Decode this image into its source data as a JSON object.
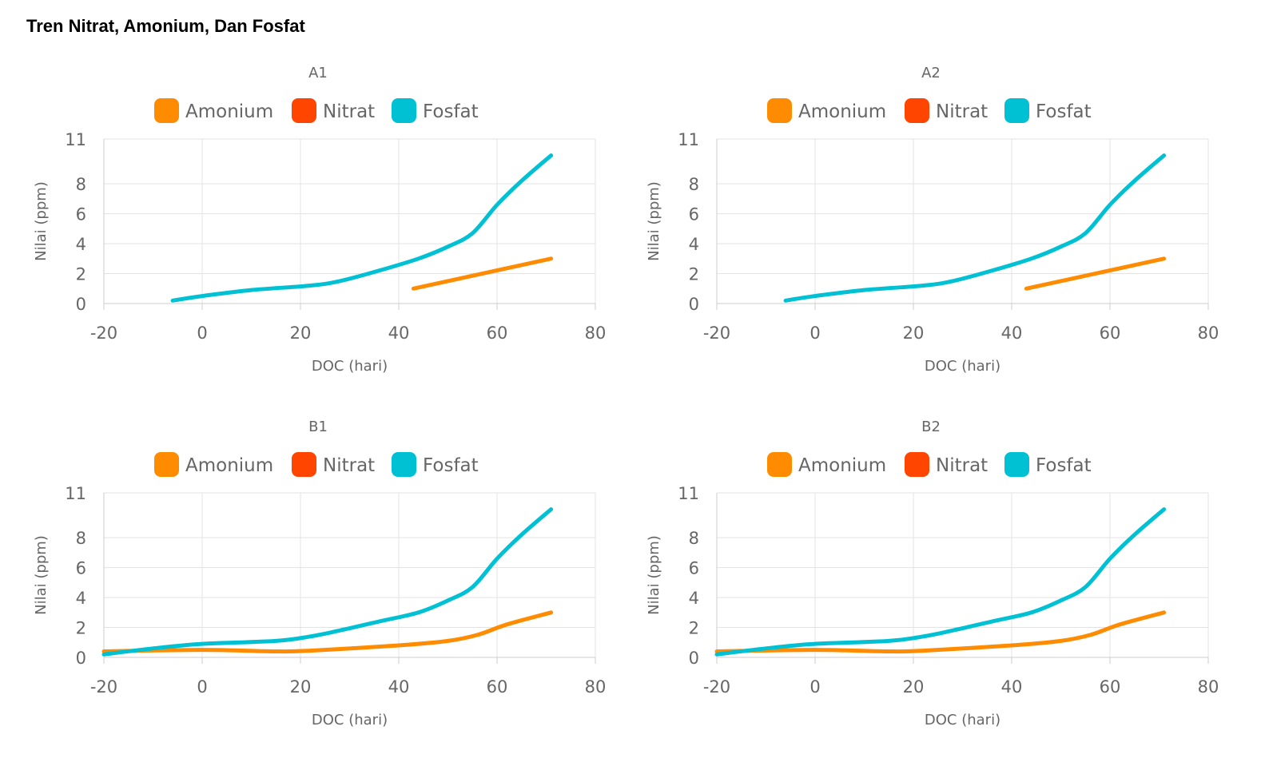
{
  "title": "Tren Nitrat, Amonium, Dan Fosfat",
  "colors": {
    "Amonium": "#FF8C00",
    "Nitrat": "#FF4500",
    "Fosfat": "#00C1D4"
  },
  "chart_data": [
    {
      "type": "line",
      "title": "A1",
      "xlabel": "DOC (hari)",
      "ylabel": "Nilai (ppm)",
      "xlim": [
        -20,
        80
      ],
      "ylim": [
        0,
        11
      ],
      "xticks": [
        "-20",
        "0",
        "20",
        "40",
        "60",
        "80"
      ],
      "yticks": [
        "0",
        "2",
        "4",
        "6",
        "8",
        "11"
      ],
      "legend": [
        "Amonium",
        "Nitrat",
        "Fosfat"
      ],
      "legend_position": "top-center",
      "grid": true,
      "series": [
        {
          "name": "Amonium",
          "points": [
            [
              43,
              1.0
            ],
            [
              71,
              3.0
            ]
          ]
        },
        {
          "name": "Nitrat",
          "points": []
        },
        {
          "name": "Fosfat",
          "points": [
            [
              -6,
              0.2
            ],
            [
              0,
              0.5
            ],
            [
              10,
              0.9
            ],
            [
              22,
              1.2
            ],
            [
              28,
              1.5
            ],
            [
              36,
              2.2
            ],
            [
              44,
              3.0
            ],
            [
              50,
              3.8
            ],
            [
              55,
              4.7
            ],
            [
              60,
              6.6
            ],
            [
              65,
              8.2
            ],
            [
              71,
              9.9
            ]
          ]
        }
      ]
    },
    {
      "type": "line",
      "title": "A2",
      "xlabel": "DOC (hari)",
      "ylabel": "Nilai (ppm)",
      "xlim": [
        -20,
        80
      ],
      "ylim": [
        0,
        11
      ],
      "xticks": [
        "-20",
        "0",
        "20",
        "40",
        "60",
        "80"
      ],
      "yticks": [
        "0",
        "2",
        "4",
        "6",
        "8",
        "11"
      ],
      "legend": [
        "Amonium",
        "Nitrat",
        "Fosfat"
      ],
      "legend_position": "top-center",
      "grid": true,
      "series": [
        {
          "name": "Amonium",
          "points": [
            [
              43,
              1.0
            ],
            [
              71,
              3.0
            ]
          ]
        },
        {
          "name": "Nitrat",
          "points": []
        },
        {
          "name": "Fosfat",
          "points": [
            [
              -6,
              0.2
            ],
            [
              0,
              0.5
            ],
            [
              10,
              0.9
            ],
            [
              22,
              1.2
            ],
            [
              28,
              1.5
            ],
            [
              36,
              2.2
            ],
            [
              44,
              3.0
            ],
            [
              50,
              3.8
            ],
            [
              55,
              4.7
            ],
            [
              60,
              6.6
            ],
            [
              65,
              8.2
            ],
            [
              71,
              9.9
            ]
          ]
        }
      ]
    },
    {
      "type": "line",
      "title": "B1",
      "xlabel": "DOC (hari)",
      "ylabel": "Nilai (ppm)",
      "xlim": [
        -20,
        80
      ],
      "ylim": [
        0,
        11
      ],
      "xticks": [
        "-20",
        "0",
        "20",
        "40",
        "60",
        "80"
      ],
      "yticks": [
        "0",
        "2",
        "4",
        "6",
        "8",
        "11"
      ],
      "legend": [
        "Amonium",
        "Nitrat",
        "Fosfat"
      ],
      "legend_position": "top-center",
      "grid": true,
      "series": [
        {
          "name": "Amonium",
          "points": [
            [
              -20,
              0.4
            ],
            [
              0,
              0.5
            ],
            [
              15,
              0.4
            ],
            [
              22,
              0.45
            ],
            [
              40,
              0.8
            ],
            [
              50,
              1.1
            ],
            [
              56,
              1.5
            ],
            [
              62,
              2.2
            ],
            [
              71,
              3.0
            ]
          ]
        },
        {
          "name": "Nitrat",
          "points": []
        },
        {
          "name": "Fosfat",
          "points": [
            [
              -20,
              0.2
            ],
            [
              -10,
              0.6
            ],
            [
              0,
              0.9
            ],
            [
              15,
              1.1
            ],
            [
              22,
              1.4
            ],
            [
              28,
              1.8
            ],
            [
              36,
              2.4
            ],
            [
              44,
              3.0
            ],
            [
              50,
              3.8
            ],
            [
              55,
              4.7
            ],
            [
              60,
              6.6
            ],
            [
              65,
              8.2
            ],
            [
              71,
              9.9
            ]
          ]
        }
      ]
    },
    {
      "type": "line",
      "title": "B2",
      "xlabel": "DOC (hari)",
      "ylabel": "Nilai (ppm)",
      "xlim": [
        -20,
        80
      ],
      "ylim": [
        0,
        11
      ],
      "xticks": [
        "-20",
        "0",
        "20",
        "40",
        "60",
        "80"
      ],
      "yticks": [
        "0",
        "2",
        "4",
        "6",
        "8",
        "11"
      ],
      "legend": [
        "Amonium",
        "Nitrat",
        "Fosfat"
      ],
      "legend_position": "top-center",
      "grid": true,
      "series": [
        {
          "name": "Amonium",
          "points": [
            [
              -20,
              0.4
            ],
            [
              0,
              0.5
            ],
            [
              15,
              0.4
            ],
            [
              22,
              0.45
            ],
            [
              40,
              0.8
            ],
            [
              50,
              1.1
            ],
            [
              56,
              1.5
            ],
            [
              62,
              2.2
            ],
            [
              71,
              3.0
            ]
          ]
        },
        {
          "name": "Nitrat",
          "points": []
        },
        {
          "name": "Fosfat",
          "points": [
            [
              -20,
              0.2
            ],
            [
              -10,
              0.6
            ],
            [
              0,
              0.9
            ],
            [
              15,
              1.1
            ],
            [
              22,
              1.4
            ],
            [
              28,
              1.8
            ],
            [
              36,
              2.4
            ],
            [
              44,
              3.0
            ],
            [
              50,
              3.8
            ],
            [
              55,
              4.7
            ],
            [
              60,
              6.6
            ],
            [
              65,
              8.2
            ],
            [
              71,
              9.9
            ]
          ]
        }
      ]
    }
  ]
}
